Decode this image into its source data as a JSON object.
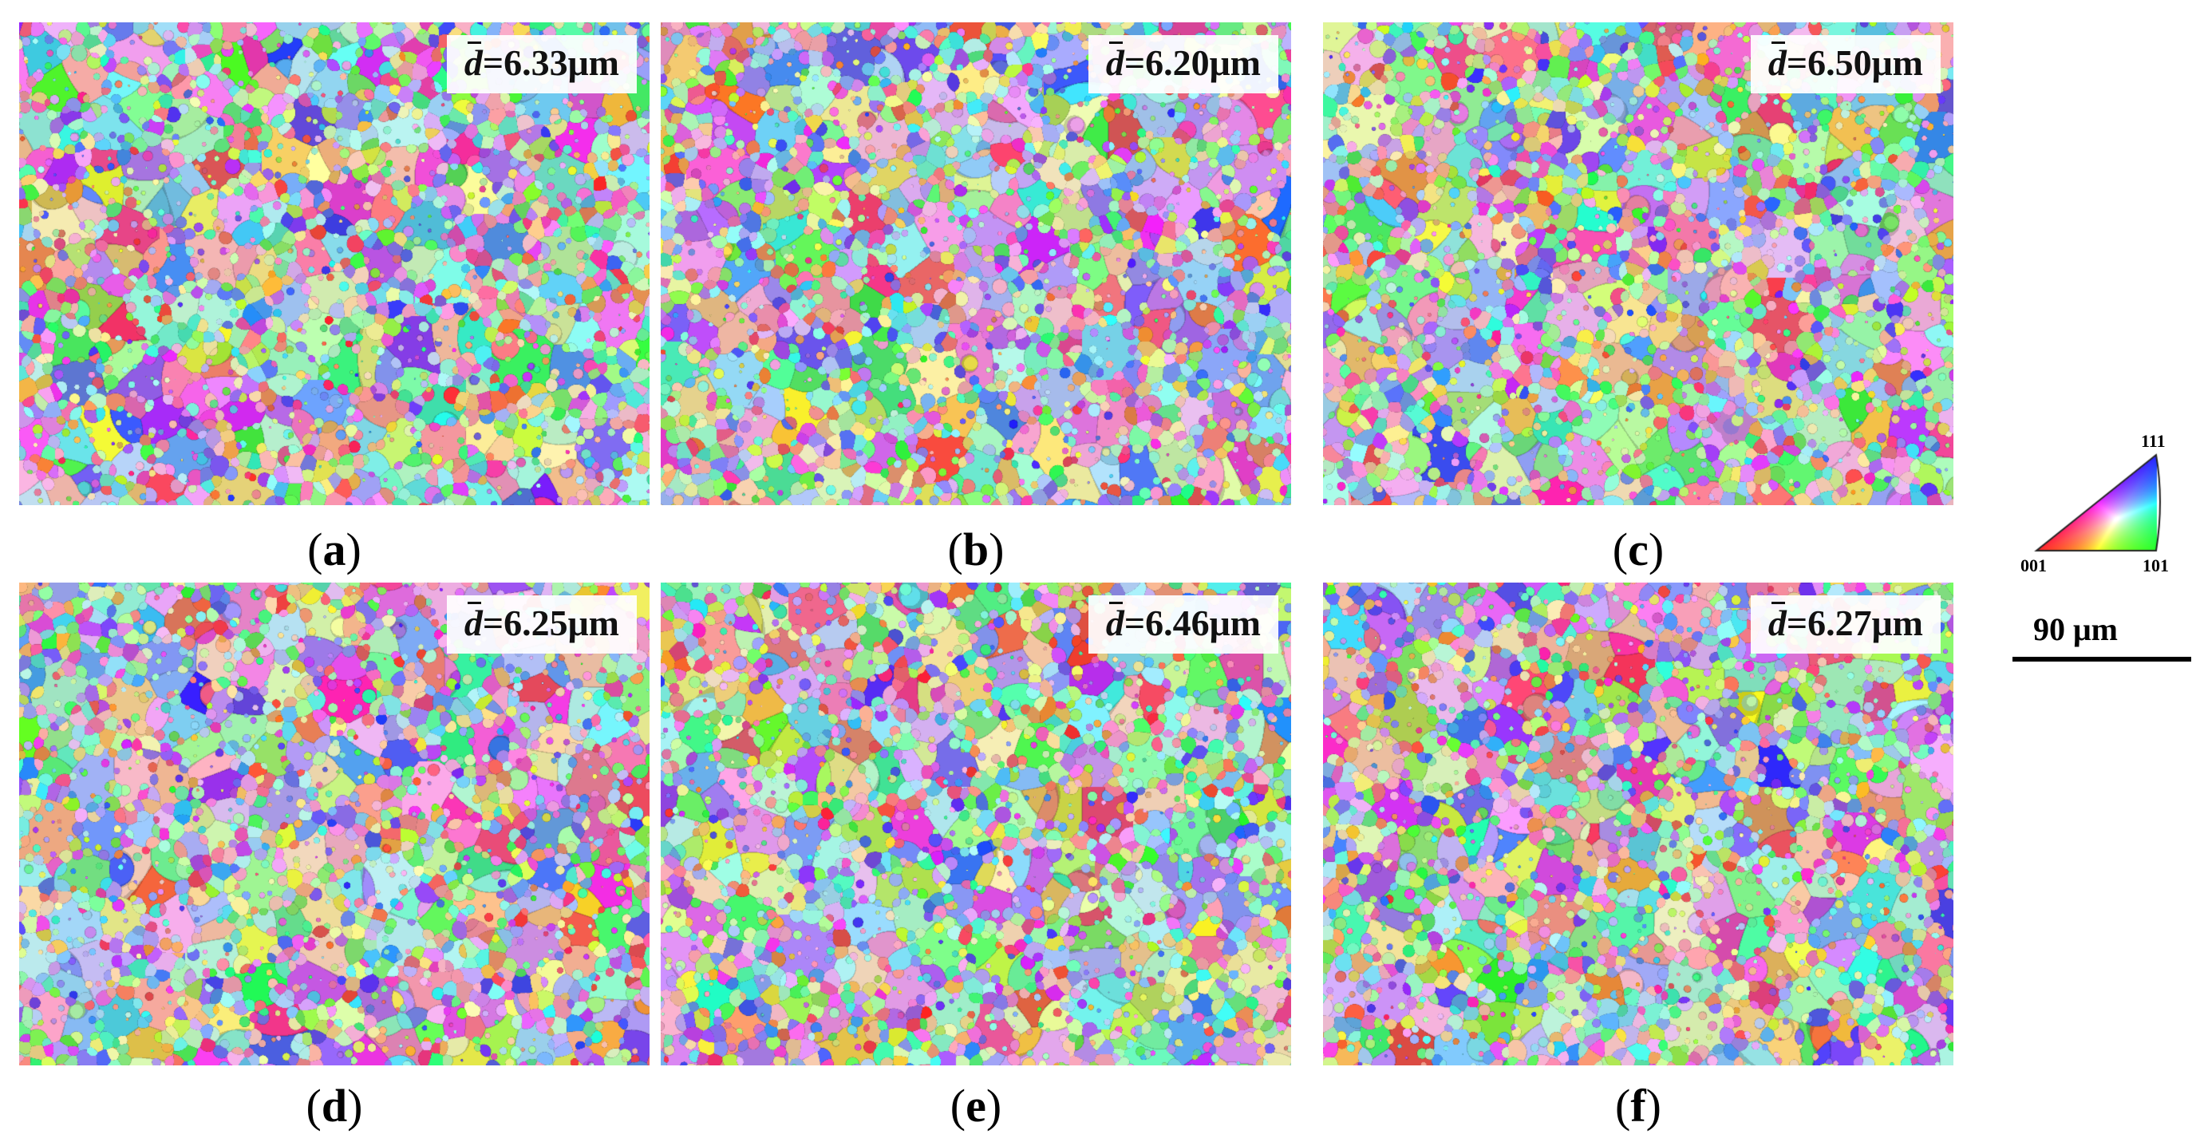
{
  "panels": [
    {
      "id": "a",
      "caption": "a",
      "d_symbol": "d",
      "d_value": "=6.33μm"
    },
    {
      "id": "b",
      "caption": "b",
      "d_symbol": "d",
      "d_value": "=6.20μm"
    },
    {
      "id": "c",
      "caption": "c",
      "d_symbol": "d",
      "d_value": "=6.50μm"
    },
    {
      "id": "d",
      "caption": "d",
      "d_symbol": "d",
      "d_value": "=6.25μm"
    },
    {
      "id": "e",
      "caption": "e",
      "d_symbol": "d",
      "d_value": "=6.46μm"
    },
    {
      "id": "f",
      "caption": "f",
      "d_symbol": "d",
      "d_value": "=6.27μm"
    }
  ],
  "legend": {
    "top_label": "111",
    "left_label": "001",
    "right_label": "101",
    "corner_colors": {
      "001": "#ff0000",
      "101": "#00ff00",
      "111": "#0000ff"
    }
  },
  "scale_bar": {
    "label": "90 μm"
  }
}
